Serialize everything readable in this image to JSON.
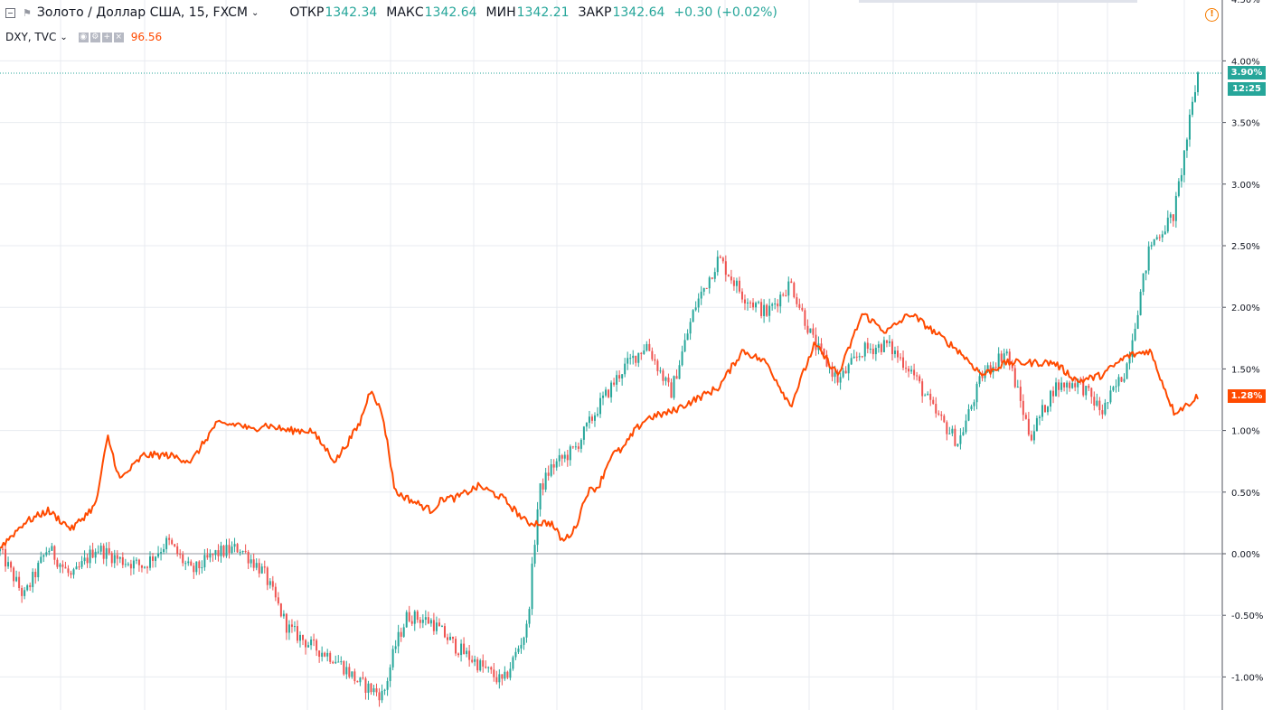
{
  "legend": {
    "symbol": "Золото / Доллар США, 15, FXCM",
    "icon": "chevron-down-icon",
    "ohlc": [
      {
        "label": "ОТКР",
        "value": "1342.34"
      },
      {
        "label": "МАКС",
        "value": "1342.64"
      },
      {
        "label": "МИН",
        "value": "1342.21"
      },
      {
        "label": "ЗАКР",
        "value": "1342.64"
      }
    ],
    "change": "+0.30 (+0.02%)",
    "study_symbol": "DXY, TVC",
    "study_value": "96.56"
  },
  "colors": {
    "up": "#26a69a",
    "down": "#ef5350",
    "compare_line": "#ff4a00",
    "grid": "#e8ebf0",
    "axis_text": "#131722"
  },
  "price_tags": {
    "gold_percent": "3.90%",
    "countdown": "12:25",
    "dxy_percent": "1.28%"
  },
  "chart_data": {
    "type": "line",
    "title": "Золото / Доллар США, 15, FXCM",
    "y_unit": "%",
    "ylim": [
      -1.25,
      4.5
    ],
    "y_ticks": [
      "4.50%",
      "4.00%",
      "3.50%",
      "3.00%",
      "2.50%",
      "2.00%",
      "1.50%",
      "1.00%",
      "0.50%",
      "0.00%",
      "-0.50%",
      "-1.00%"
    ],
    "grid": true,
    "legend_position": "top-left",
    "series": [
      {
        "name": "Золото / Доллар США, 15, FXCM",
        "style": "candlestick",
        "x": [
          0,
          2,
          4,
          6,
          8,
          10,
          12,
          14,
          16,
          18,
          20,
          22,
          24,
          26,
          28,
          30,
          32,
          33,
          34,
          36,
          38,
          40,
          42,
          44,
          45,
          46,
          48,
          50,
          52,
          54,
          56,
          58,
          60,
          62,
          64,
          66,
          68,
          70,
          72,
          74,
          76,
          78,
          80,
          82,
          84,
          86,
          88,
          90,
          92,
          94,
          96,
          98,
          100
        ],
        "values": [
          0.02,
          -0.35,
          0.05,
          -0.2,
          0.05,
          -0.05,
          -0.1,
          0.1,
          -0.15,
          0.0,
          0.05,
          -0.15,
          -0.6,
          -0.75,
          -0.85,
          -1.05,
          -1.15,
          -0.75,
          -0.5,
          -0.55,
          -0.75,
          -0.9,
          -1.05,
          -0.6,
          0.5,
          0.7,
          0.85,
          1.2,
          1.5,
          1.7,
          1.3,
          2.0,
          2.4,
          2.1,
          1.95,
          2.2,
          1.7,
          1.4,
          1.65,
          1.7,
          1.5,
          1.15,
          0.9,
          1.45,
          1.65,
          0.95,
          1.35,
          1.4,
          1.15,
          1.5,
          2.5,
          2.75,
          3.9
        ]
      },
      {
        "name": "DXY, TVC",
        "style": "line",
        "x": [
          0,
          2,
          4,
          6,
          8,
          9,
          10,
          12,
          14,
          16,
          18,
          20,
          21,
          22,
          24,
          26,
          28,
          30,
          31,
          32,
          33,
          34,
          35,
          36,
          37,
          38,
          40,
          42,
          44,
          46,
          47,
          48,
          49,
          50,
          51,
          52,
          53,
          54,
          56,
          58,
          60,
          62,
          64,
          66,
          68,
          70,
          72,
          74,
          76,
          78,
          80,
          82,
          84,
          86,
          88,
          90,
          92,
          94,
          96,
          98,
          99,
          100
        ],
        "values": [
          0.05,
          0.25,
          0.35,
          0.2,
          0.4,
          0.95,
          0.6,
          0.8,
          0.8,
          0.75,
          1.05,
          1.05,
          1.0,
          1.05,
          1.0,
          1.0,
          0.75,
          1.05,
          1.35,
          1.1,
          0.5,
          0.45,
          0.4,
          0.35,
          0.45,
          0.45,
          0.55,
          0.45,
          0.25,
          0.25,
          0.1,
          0.2,
          0.5,
          0.55,
          0.8,
          0.85,
          1.0,
          1.1,
          1.15,
          1.25,
          1.35,
          1.65,
          1.55,
          1.2,
          1.7,
          1.45,
          1.95,
          1.8,
          1.95,
          1.8,
          1.65,
          1.45,
          1.55,
          1.55,
          1.55,
          1.4,
          1.45,
          1.6,
          1.65,
          1.15,
          1.2,
          1.28
        ]
      }
    ]
  }
}
